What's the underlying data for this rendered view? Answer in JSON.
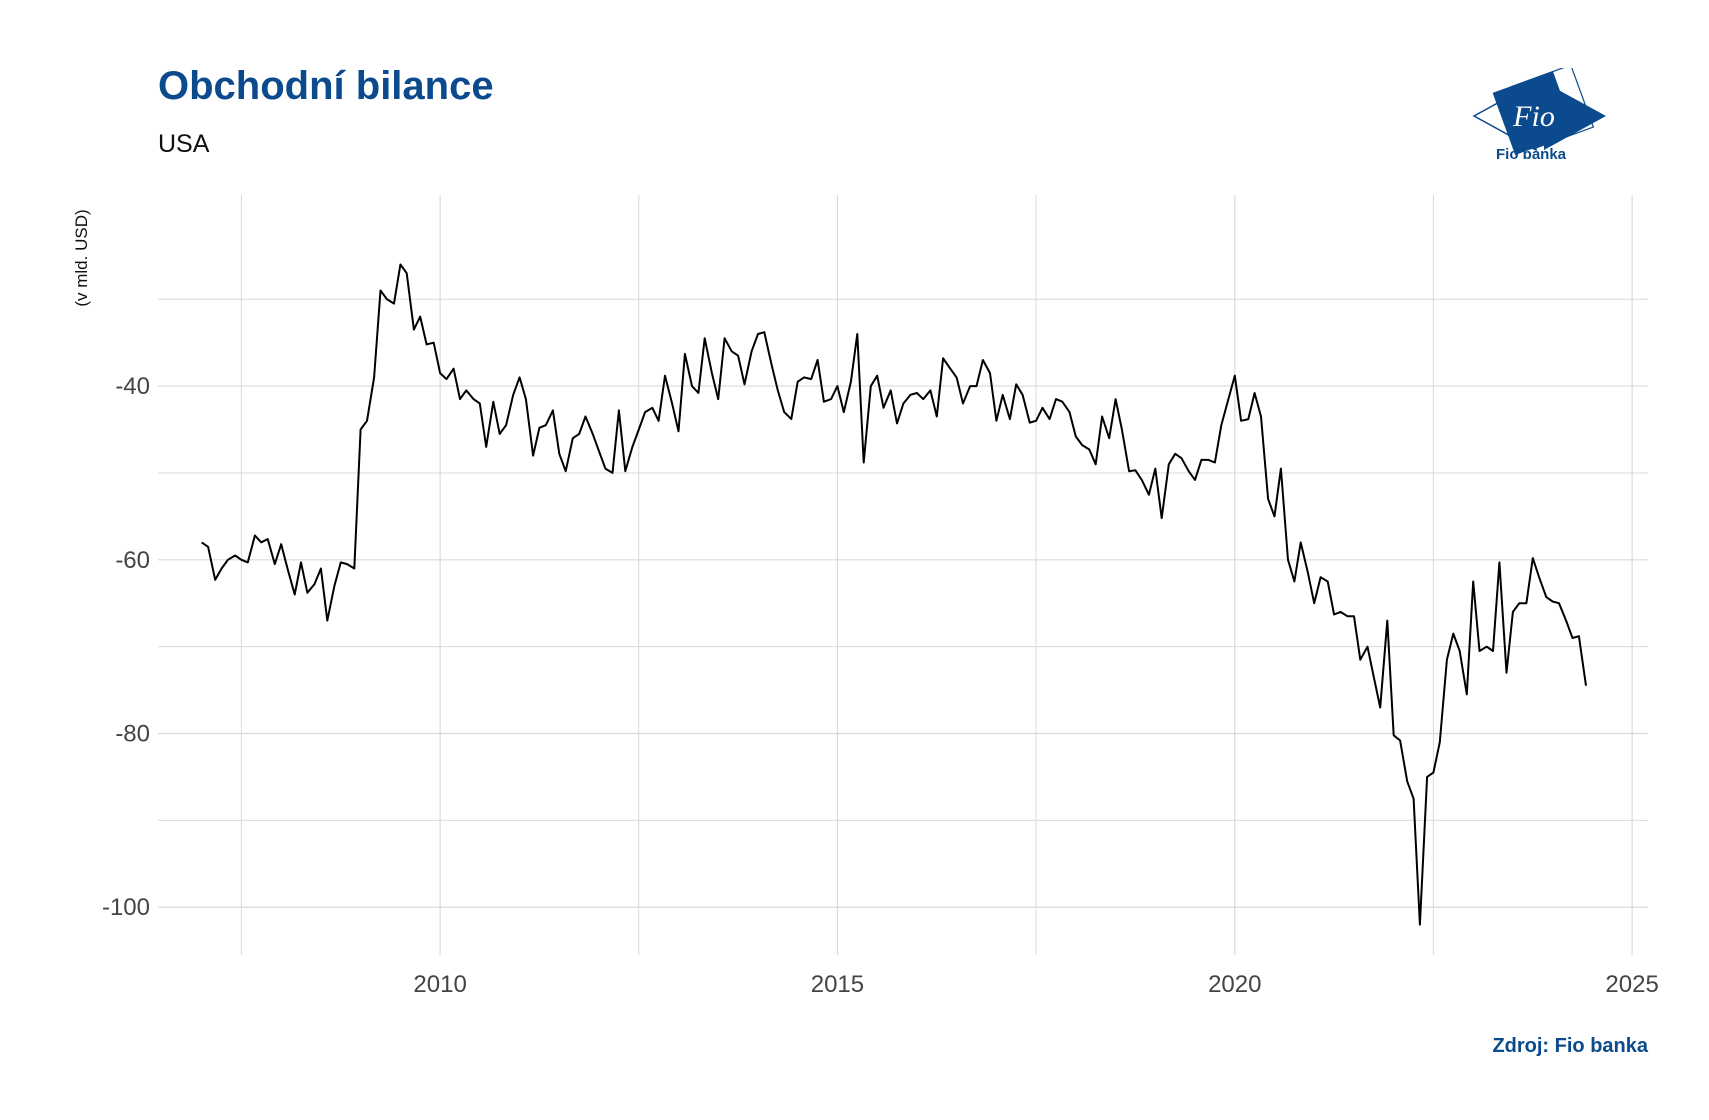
{
  "header": {
    "title": "Obchodní bilance",
    "subtitle": "USA"
  },
  "logo": {
    "text": "Fio banka",
    "mark": "Fio"
  },
  "footer": {
    "source": "Zdroj: Fio banka"
  },
  "colors": {
    "brand": "#0b4a8c",
    "line": "#000000",
    "grid": "#d9d9d9"
  },
  "chart_data": {
    "type": "line",
    "title": "Obchodní bilance",
    "subtitle": "USA",
    "xlabel": "",
    "ylabel": "(v mld. USD)",
    "xlim": [
      2006.45,
      2025.2
    ],
    "ylim": [
      -105.5,
      -18
    ],
    "x_ticks": [
      2010,
      2015,
      2020,
      2025
    ],
    "x_tick_labels": [
      "2010",
      "2015",
      "2020",
      "2025"
    ],
    "x_minor": [
      2007.5,
      2012.5,
      2017.5,
      2022.5
    ],
    "y_ticks": [
      -100,
      -80,
      -60,
      -40
    ],
    "y_tick_labels": [
      "-100",
      "-80",
      "-60",
      "-40"
    ],
    "y_minor": [
      -90,
      -70,
      -50,
      -30
    ],
    "grid": true,
    "legend": "none",
    "series": [
      {
        "points": [
          [
            2007.0,
            -58.0
          ],
          [
            2007.08,
            -58.5
          ],
          [
            2007.17,
            -62.3
          ],
          [
            2007.25,
            -61.0
          ],
          [
            2007.33,
            -60.0
          ],
          [
            2007.42,
            -59.5
          ],
          [
            2007.5,
            -60.0
          ],
          [
            2007.58,
            -60.3
          ],
          [
            2007.67,
            -57.2
          ],
          [
            2007.75,
            -58.0
          ],
          [
            2007.83,
            -57.6
          ],
          [
            2007.92,
            -60.5
          ],
          [
            2008.0,
            -58.2
          ],
          [
            2008.08,
            -61.0
          ],
          [
            2008.17,
            -64.0
          ],
          [
            2008.25,
            -60.3
          ],
          [
            2008.33,
            -63.8
          ],
          [
            2008.42,
            -62.8
          ],
          [
            2008.5,
            -61.0
          ],
          [
            2008.58,
            -67.0
          ],
          [
            2008.67,
            -63.0
          ],
          [
            2008.75,
            -60.3
          ],
          [
            2008.83,
            -60.5
          ],
          [
            2008.92,
            -61.0
          ],
          [
            2009.0,
            -45.0
          ],
          [
            2009.08,
            -44.0
          ],
          [
            2009.17,
            -39.0
          ],
          [
            2009.25,
            -29.0
          ],
          [
            2009.33,
            -30.0
          ],
          [
            2009.42,
            -30.5
          ],
          [
            2009.5,
            -26.0
          ],
          [
            2009.58,
            -27.0
          ],
          [
            2009.67,
            -33.5
          ],
          [
            2009.75,
            -32.0
          ],
          [
            2009.83,
            -35.2
          ],
          [
            2009.92,
            -35.0
          ],
          [
            2010.0,
            -38.5
          ],
          [
            2010.08,
            -39.2
          ],
          [
            2010.17,
            -38.0
          ],
          [
            2010.25,
            -41.5
          ],
          [
            2010.33,
            -40.5
          ],
          [
            2010.42,
            -41.5
          ],
          [
            2010.5,
            -42.0
          ],
          [
            2010.58,
            -47.0
          ],
          [
            2010.67,
            -41.8
          ],
          [
            2010.75,
            -45.5
          ],
          [
            2010.83,
            -44.5
          ],
          [
            2010.92,
            -41.0
          ],
          [
            2011.0,
            -39.0
          ],
          [
            2011.08,
            -41.5
          ],
          [
            2011.17,
            -48.0
          ],
          [
            2011.25,
            -44.8
          ],
          [
            2011.33,
            -44.5
          ],
          [
            2011.42,
            -42.8
          ],
          [
            2011.5,
            -47.8
          ],
          [
            2011.58,
            -49.8
          ],
          [
            2011.67,
            -46.0
          ],
          [
            2011.75,
            -45.5
          ],
          [
            2011.83,
            -43.5
          ],
          [
            2011.92,
            -45.5
          ],
          [
            2012.0,
            -47.5
          ],
          [
            2012.08,
            -49.5
          ],
          [
            2012.17,
            -50.0
          ],
          [
            2012.25,
            -42.8
          ],
          [
            2012.33,
            -49.8
          ],
          [
            2012.42,
            -47.0
          ],
          [
            2012.5,
            -45.0
          ],
          [
            2012.58,
            -43.0
          ],
          [
            2012.67,
            -42.5
          ],
          [
            2012.75,
            -44.0
          ],
          [
            2012.83,
            -38.8
          ],
          [
            2012.92,
            -42.0
          ],
          [
            2013.0,
            -45.2
          ],
          [
            2013.08,
            -36.3
          ],
          [
            2013.17,
            -40.0
          ],
          [
            2013.25,
            -40.8
          ],
          [
            2013.33,
            -34.5
          ],
          [
            2013.42,
            -38.5
          ],
          [
            2013.5,
            -41.5
          ],
          [
            2013.58,
            -34.5
          ],
          [
            2013.67,
            -36.0
          ],
          [
            2013.75,
            -36.5
          ],
          [
            2013.83,
            -39.8
          ],
          [
            2013.92,
            -36.0
          ],
          [
            2014.0,
            -34.0
          ],
          [
            2014.08,
            -33.8
          ],
          [
            2014.17,
            -37.5
          ],
          [
            2014.25,
            -40.5
          ],
          [
            2014.33,
            -43.0
          ],
          [
            2014.42,
            -43.8
          ],
          [
            2014.5,
            -39.5
          ],
          [
            2014.58,
            -39.0
          ],
          [
            2014.67,
            -39.2
          ],
          [
            2014.75,
            -37.0
          ],
          [
            2014.83,
            -41.8
          ],
          [
            2014.92,
            -41.5
          ],
          [
            2015.0,
            -40.0
          ],
          [
            2015.08,
            -43.0
          ],
          [
            2015.17,
            -39.5
          ],
          [
            2015.25,
            -34.0
          ],
          [
            2015.33,
            -48.8
          ],
          [
            2015.42,
            -40.0
          ],
          [
            2015.5,
            -38.8
          ],
          [
            2015.58,
            -42.5
          ],
          [
            2015.67,
            -40.5
          ],
          [
            2015.75,
            -44.3
          ],
          [
            2015.83,
            -42.0
          ],
          [
            2015.92,
            -41.0
          ],
          [
            2016.0,
            -40.8
          ],
          [
            2016.08,
            -41.5
          ],
          [
            2016.17,
            -40.5
          ],
          [
            2016.25,
            -43.5
          ],
          [
            2016.33,
            -36.8
          ],
          [
            2016.42,
            -38.0
          ],
          [
            2016.5,
            -39.0
          ],
          [
            2016.58,
            -42.0
          ],
          [
            2016.67,
            -40.0
          ],
          [
            2016.75,
            -40.0
          ],
          [
            2016.83,
            -37.0
          ],
          [
            2016.92,
            -38.5
          ],
          [
            2017.0,
            -44.0
          ],
          [
            2017.08,
            -41.0
          ],
          [
            2017.17,
            -43.8
          ],
          [
            2017.25,
            -39.8
          ],
          [
            2017.33,
            -41.0
          ],
          [
            2017.42,
            -44.2
          ],
          [
            2017.5,
            -44.0
          ],
          [
            2017.58,
            -42.5
          ],
          [
            2017.67,
            -43.8
          ],
          [
            2017.75,
            -41.5
          ],
          [
            2017.83,
            -41.8
          ],
          [
            2017.92,
            -43.0
          ],
          [
            2018.0,
            -45.8
          ],
          [
            2018.08,
            -46.8
          ],
          [
            2018.17,
            -47.3
          ],
          [
            2018.25,
            -49.0
          ],
          [
            2018.33,
            -43.5
          ],
          [
            2018.42,
            -46.0
          ],
          [
            2018.5,
            -41.5
          ],
          [
            2018.58,
            -45.0
          ],
          [
            2018.67,
            -49.8
          ],
          [
            2018.75,
            -49.7
          ],
          [
            2018.83,
            -50.8
          ],
          [
            2018.92,
            -52.5
          ],
          [
            2019.0,
            -49.5
          ],
          [
            2019.08,
            -55.2
          ],
          [
            2019.17,
            -49.0
          ],
          [
            2019.25,
            -47.8
          ],
          [
            2019.33,
            -48.3
          ],
          [
            2019.42,
            -49.8
          ],
          [
            2019.5,
            -50.8
          ],
          [
            2019.58,
            -48.5
          ],
          [
            2019.67,
            -48.5
          ],
          [
            2019.75,
            -48.8
          ],
          [
            2019.83,
            -44.5
          ],
          [
            2019.92,
            -41.5
          ],
          [
            2020.0,
            -38.8
          ],
          [
            2020.08,
            -44.0
          ],
          [
            2020.17,
            -43.8
          ],
          [
            2020.25,
            -40.8
          ],
          [
            2020.33,
            -43.5
          ],
          [
            2020.42,
            -53.0
          ],
          [
            2020.5,
            -55.0
          ],
          [
            2020.58,
            -49.5
          ],
          [
            2020.67,
            -60.0
          ],
          [
            2020.75,
            -62.5
          ],
          [
            2020.83,
            -58.0
          ],
          [
            2020.92,
            -61.5
          ],
          [
            2021.0,
            -65.0
          ],
          [
            2021.08,
            -62.0
          ],
          [
            2021.17,
            -62.5
          ],
          [
            2021.25,
            -66.3
          ],
          [
            2021.33,
            -66.0
          ],
          [
            2021.42,
            -66.5
          ],
          [
            2021.5,
            -66.5
          ],
          [
            2021.58,
            -71.5
          ],
          [
            2021.67,
            -70.0
          ],
          [
            2021.75,
            -73.5
          ],
          [
            2021.83,
            -77.0
          ],
          [
            2021.92,
            -67.0
          ],
          [
            2022.0,
            -80.2
          ],
          [
            2022.08,
            -80.8
          ],
          [
            2022.17,
            -85.5
          ],
          [
            2022.25,
            -87.5
          ],
          [
            2022.33,
            -102.0
          ],
          [
            2022.42,
            -85.0
          ],
          [
            2022.5,
            -84.5
          ],
          [
            2022.58,
            -81.0
          ],
          [
            2022.67,
            -71.5
          ],
          [
            2022.75,
            -68.5
          ],
          [
            2022.83,
            -70.5
          ],
          [
            2022.92,
            -75.5
          ],
          [
            2023.0,
            -62.5
          ],
          [
            2023.08,
            -70.5
          ],
          [
            2023.17,
            -70.0
          ],
          [
            2023.25,
            -70.5
          ],
          [
            2023.33,
            -60.3
          ],
          [
            2023.42,
            -73.0
          ],
          [
            2023.5,
            -66.0
          ],
          [
            2023.58,
            -65.0
          ],
          [
            2023.67,
            -65.0
          ],
          [
            2023.75,
            -59.8
          ],
          [
            2023.83,
            -62.0
          ],
          [
            2023.92,
            -64.3
          ],
          [
            2024.0,
            -64.8
          ],
          [
            2024.08,
            -65.0
          ],
          [
            2024.17,
            -67.0
          ],
          [
            2024.25,
            -69.0
          ],
          [
            2024.33,
            -68.8
          ],
          [
            2024.42,
            -74.5
          ]
        ]
      }
    ]
  }
}
